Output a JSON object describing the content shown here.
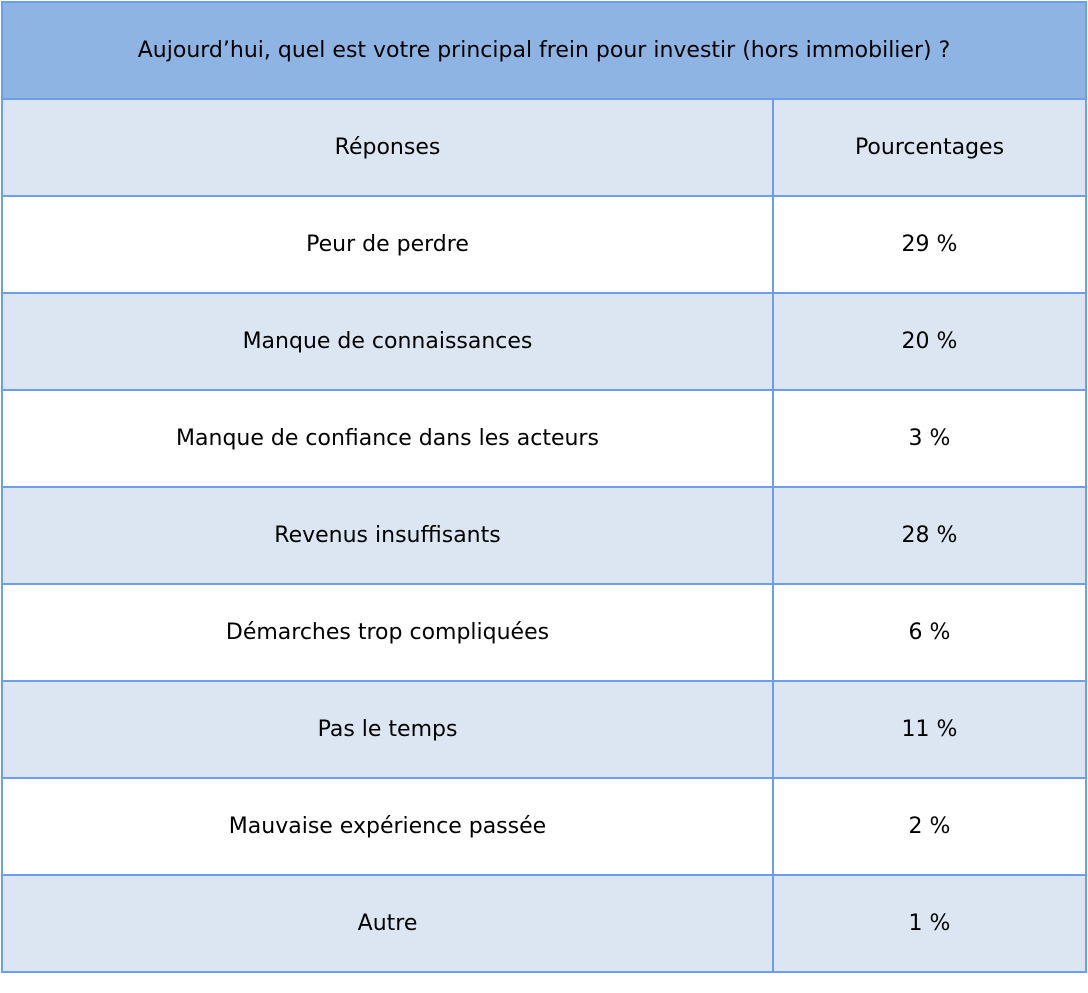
{
  "table": {
    "title": "Aujourd’hui, quel est votre principal frein pour investir (hors immobilier) ?",
    "header": [
      "Réponses",
      "Pourcentages"
    ],
    "rows": [
      [
        "Peur de perdre",
        "29 %"
      ],
      [
        "Manque de connaissances",
        "20 %"
      ],
      [
        "Manque de confiance dans les acteurs",
        "3 %"
      ],
      [
        "Revenus insuffisants",
        "28 %"
      ],
      [
        "Démarches trop compliquées",
        "6 %"
      ],
      [
        "Pas le temps",
        "11 %"
      ],
      [
        "Mauvaise expérience passée",
        "2 %"
      ],
      [
        "Autre",
        "1 %"
      ]
    ]
  }
}
